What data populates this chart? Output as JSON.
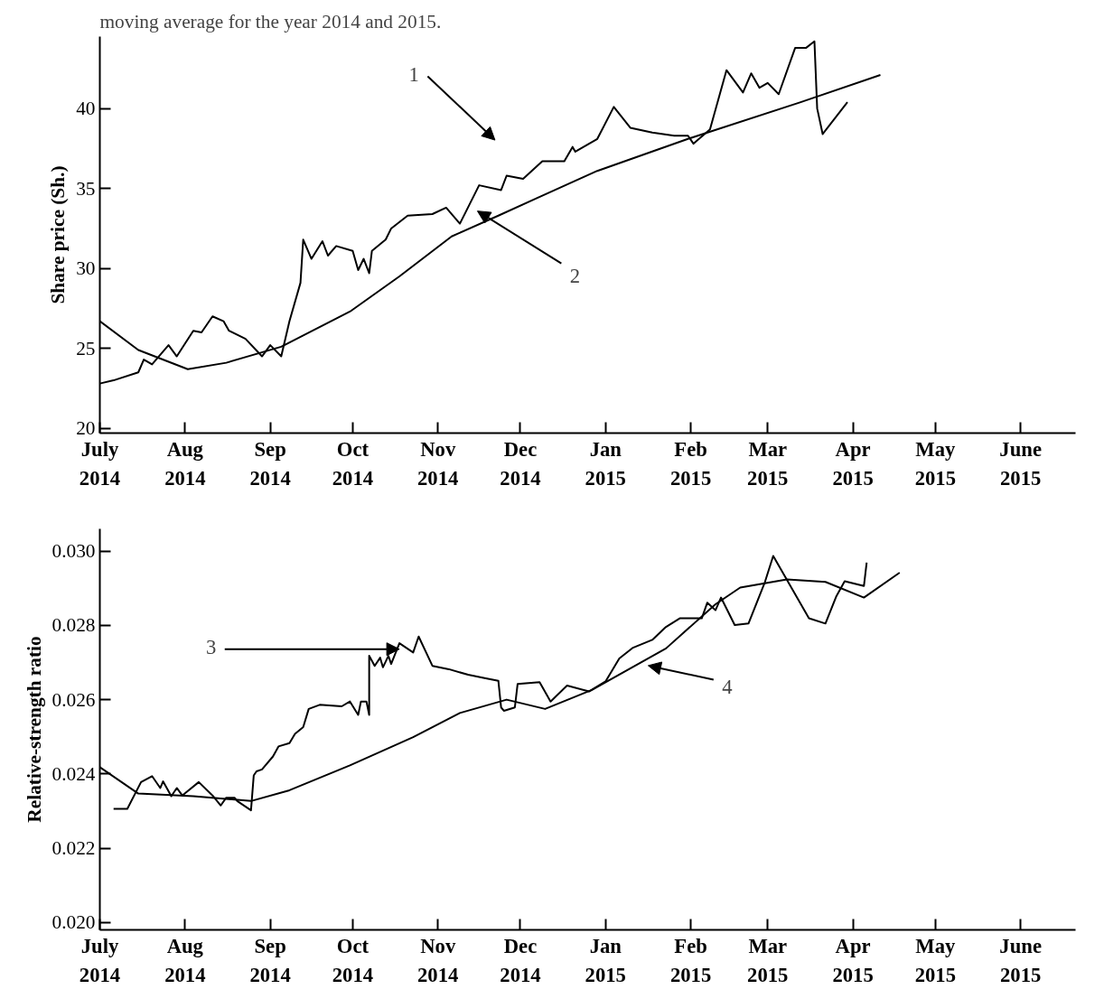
{
  "chart_data": [
    {
      "type": "line",
      "annotations": [
        "moving average for the year 2014 and 2015.",
        "1",
        "2"
      ],
      "ylabel": "Share price (Sh.)",
      "xlim": [
        "2014-07-01",
        "2015-06-21"
      ],
      "ylim": [
        19.7,
        44.5
      ],
      "yticks": [
        20,
        25,
        30,
        35,
        40
      ],
      "xticks": [
        {
          "value": "2014-07-01",
          "label": "July\n2014"
        },
        {
          "value": "2014-08-01",
          "label": "Aug\n2014"
        },
        {
          "value": "2014-09-01",
          "label": "Sep\n2014"
        },
        {
          "value": "2014-10-01",
          "label": "Oct\n2014"
        },
        {
          "value": "2014-11-01",
          "label": "Nov\n2014"
        },
        {
          "value": "2014-12-01",
          "label": "Dec\n2014"
        },
        {
          "value": "2015-01-01",
          "label": "Jan\n2015"
        },
        {
          "value": "2015-02-01",
          "label": "Feb\n2015"
        },
        {
          "value": "2015-03-01",
          "label": "Mar\n2015"
        },
        {
          "value": "2015-04-01",
          "label": "Apr\n2015"
        },
        {
          "value": "2015-05-01",
          "label": "May\n2015"
        },
        {
          "value": "2015-06-01",
          "label": "June\n2015"
        }
      ],
      "series": [
        {
          "color": "#000000",
          "x": [
            "2014-07-01",
            "2014-07-06",
            "2014-07-15",
            "2014-07-17",
            "2014-07-20",
            "2014-07-26",
            "2014-07-29",
            "2014-08-04",
            "2014-08-07",
            "2014-08-11",
            "2014-08-15",
            "2014-08-17",
            "2014-08-23",
            "2014-08-29",
            "2014-09-01",
            "2014-09-05",
            "2014-09-08",
            "2014-09-12",
            "2014-09-13",
            "2014-09-16",
            "2014-09-20",
            "2014-09-22",
            "2014-09-25",
            "2014-10-01",
            "2014-10-03",
            "2014-10-05",
            "2014-10-07",
            "2014-10-08",
            "2014-10-13",
            "2014-10-15",
            "2014-10-21",
            "2014-10-30",
            "2014-11-04",
            "2014-11-09",
            "2014-11-16",
            "2014-11-24",
            "2014-11-26",
            "2014-12-02",
            "2014-12-09",
            "2014-12-17",
            "2014-12-20",
            "2014-12-21",
            "2014-12-29",
            "2015-01-04",
            "2015-01-10",
            "2015-01-18",
            "2015-01-26",
            "2015-01-31",
            "2015-02-02",
            "2015-02-08",
            "2015-02-14",
            "2015-02-20",
            "2015-02-23",
            "2015-02-26",
            "2015-03-01",
            "2015-03-05",
            "2015-03-11",
            "2015-03-15",
            "2015-03-18",
            "2015-03-19",
            "2015-03-21",
            "2015-03-30"
          ],
          "values": [
            22.8,
            23.0,
            23.5,
            24.3,
            24.0,
            25.2,
            24.5,
            26.1,
            26.0,
            27.0,
            26.7,
            26.1,
            25.6,
            24.5,
            25.2,
            24.5,
            26.7,
            29.1,
            31.8,
            30.6,
            31.7,
            30.8,
            31.4,
            31.1,
            29.9,
            30.6,
            29.7,
            31.1,
            31.8,
            32.5,
            33.3,
            33.4,
            33.8,
            32.8,
            35.2,
            34.9,
            35.8,
            35.6,
            36.7,
            36.7,
            37.6,
            37.3,
            38.1,
            40.1,
            38.8,
            38.5,
            38.3,
            38.3,
            37.8,
            38.7,
            42.4,
            41.0,
            42.2,
            41.3,
            41.6,
            40.9,
            43.8,
            43.8,
            44.2,
            40.0,
            38.4,
            40.4
          ]
        },
        {
          "color": "#000000",
          "x": [
            "2014-07-01",
            "2014-07-15",
            "2014-08-02",
            "2014-08-16",
            "2014-09-05",
            "2014-09-30",
            "2014-10-18",
            "2014-11-06",
            "2014-11-23",
            "2014-12-07",
            "2014-12-29",
            "2015-01-31",
            "2015-03-13",
            "2015-04-11"
          ],
          "values": [
            26.7,
            24.9,
            23.7,
            24.1,
            25.1,
            27.3,
            29.5,
            32.0,
            33.3,
            34.4,
            36.1,
            38.1,
            40.4,
            42.1
          ]
        }
      ]
    },
    {
      "type": "line",
      "annotations": [
        {
          "text": "3",
          "x": "2014-10-18",
          "y": 0.02736
        },
        "4"
      ],
      "ylabel": "Relative-strength ratio",
      "xlim": [
        "2014-07-01",
        "2015-06-21"
      ],
      "ylim": [
        0.0198,
        0.0306
      ],
      "yticks": [
        {
          "value": 0.02,
          "label": "0.020"
        },
        {
          "value": 0.022,
          "label": "0.022"
        },
        {
          "value": 0.024,
          "label": "0.024"
        },
        {
          "value": 0.026,
          "label": "0.026"
        },
        {
          "value": 0.028,
          "label": "0.028"
        },
        {
          "value": 0.03,
          "label": "0.030"
        }
      ],
      "xticks": [
        {
          "value": "2014-07-01",
          "label": "July\n2014"
        },
        {
          "value": "2014-08-01",
          "label": "Aug\n2014"
        },
        {
          "value": "2014-09-01",
          "label": "Sep\n2014"
        },
        {
          "value": "2014-10-01",
          "label": "Oct\n2014"
        },
        {
          "value": "2014-11-01",
          "label": "Nov\n2014"
        },
        {
          "value": "2014-12-01",
          "label": "Dec\n2014"
        },
        {
          "value": "2015-01-01",
          "label": "Jan\n2015"
        },
        {
          "value": "2015-02-01",
          "label": "Feb\n2015"
        },
        {
          "value": "2015-03-01",
          "label": "Mar\n2015"
        },
        {
          "value": "2015-04-01",
          "label": "Apr\n2015"
        },
        {
          "value": "2015-05-01",
          "label": "May\n2015"
        },
        {
          "value": "2015-06-01",
          "label": "June\n2015"
        }
      ],
      "series": [
        {
          "color": "#000000",
          "x": [
            "2014-07-06",
            "2014-07-11",
            "2014-07-16",
            "2014-07-20",
            "2014-07-23",
            "2014-07-24",
            "2014-07-27",
            "2014-07-29",
            "2014-07-31",
            "2014-08-06",
            "2014-08-11",
            "2014-08-14",
            "2014-08-16",
            "2014-08-19",
            "2014-08-20",
            "2014-08-25",
            "2014-08-26",
            "2014-08-27",
            "2014-08-29",
            "2014-09-02",
            "2014-09-04",
            "2014-09-08",
            "2014-09-10",
            "2014-09-13",
            "2014-09-15",
            "2014-09-19",
            "2014-09-27",
            "2014-09-30",
            "2014-10-03",
            "2014-10-04",
            "2014-10-06",
            "2014-10-07",
            "2014-10-07",
            "2014-10-09",
            "2014-10-11",
            "2014-10-12",
            "2014-10-14",
            "2014-10-15",
            "2014-10-18",
            "2014-10-23",
            "2014-10-25",
            "2014-10-30",
            "2014-11-05",
            "2014-11-12",
            "2014-11-18",
            "2014-11-23",
            "2014-11-24",
            "2014-11-25",
            "2014-11-29",
            "2014-11-30",
            "2014-12-08",
            "2014-12-12",
            "2014-12-18",
            "2014-12-26",
            "2015-01-01",
            "2015-01-06",
            "2015-01-11",
            "2015-01-18",
            "2015-01-23",
            "2015-01-28",
            "2015-02-05",
            "2015-02-07",
            "2015-02-10",
            "2015-02-12",
            "2015-02-17",
            "2015-02-22",
            "2015-02-28",
            "2015-03-03",
            "2015-03-16",
            "2015-03-22",
            "2015-03-26",
            "2015-03-29",
            "2015-04-05",
            "2015-04-06"
          ],
          "values": [
            0.02306,
            0.02306,
            0.02378,
            0.02394,
            0.02362,
            0.0238,
            0.0234,
            0.02362,
            0.02342,
            0.02378,
            0.02342,
            0.02315,
            0.02336,
            0.02336,
            0.02327,
            0.02302,
            0.02396,
            0.02407,
            0.02412,
            0.02447,
            0.02474,
            0.02483,
            0.02508,
            0.02526,
            0.02575,
            0.02586,
            0.02582,
            0.02595,
            0.02559,
            0.02595,
            0.02595,
            0.02559,
            0.02718,
            0.02691,
            0.02713,
            0.02687,
            0.02718,
            0.02696,
            0.02752,
            0.02727,
            0.0277,
            0.02691,
            0.02682,
            0.02667,
            0.02658,
            0.02651,
            0.02579,
            0.0257,
            0.02579,
            0.02642,
            0.02647,
            0.02595,
            0.02638,
            0.02622,
            0.02649,
            0.02711,
            0.0274,
            0.02761,
            0.02796,
            0.02819,
            0.02819,
            0.02861,
            0.02841,
            0.02875,
            0.02801,
            0.02805,
            0.02917,
            0.02987,
            0.02819,
            0.02805,
            0.02879,
            0.02919,
            0.02906,
            0.02969
          ]
        },
        {
          "color": "#000000",
          "x": [
            "2014-07-01",
            "2014-07-15",
            "2014-08-04",
            "2014-08-25",
            "2014-09-08",
            "2014-09-30",
            "2014-10-23",
            "2014-11-09",
            "2014-11-26",
            "2014-12-10",
            "2014-12-27",
            "2015-01-23",
            "2015-02-10",
            "2015-02-19",
            "2015-03-08",
            "2015-03-22",
            "2015-04-05",
            "2015-04-18"
          ],
          "values": [
            0.02418,
            0.02347,
            0.0234,
            0.02327,
            0.02356,
            0.02423,
            0.02499,
            0.02564,
            0.026,
            0.02575,
            0.02626,
            0.02738,
            0.02857,
            0.02902,
            0.02924,
            0.02917,
            0.02875,
            0.02942
          ]
        }
      ]
    }
  ]
}
